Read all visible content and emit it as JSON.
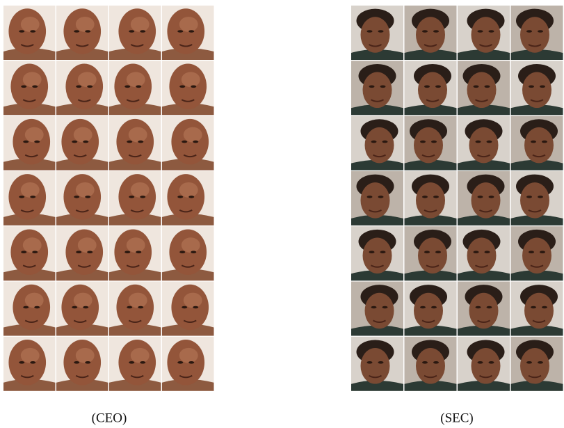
{
  "panels": [
    {
      "caption": "(CEO)"
    },
    {
      "caption": "(SEC)"
    }
  ]
}
